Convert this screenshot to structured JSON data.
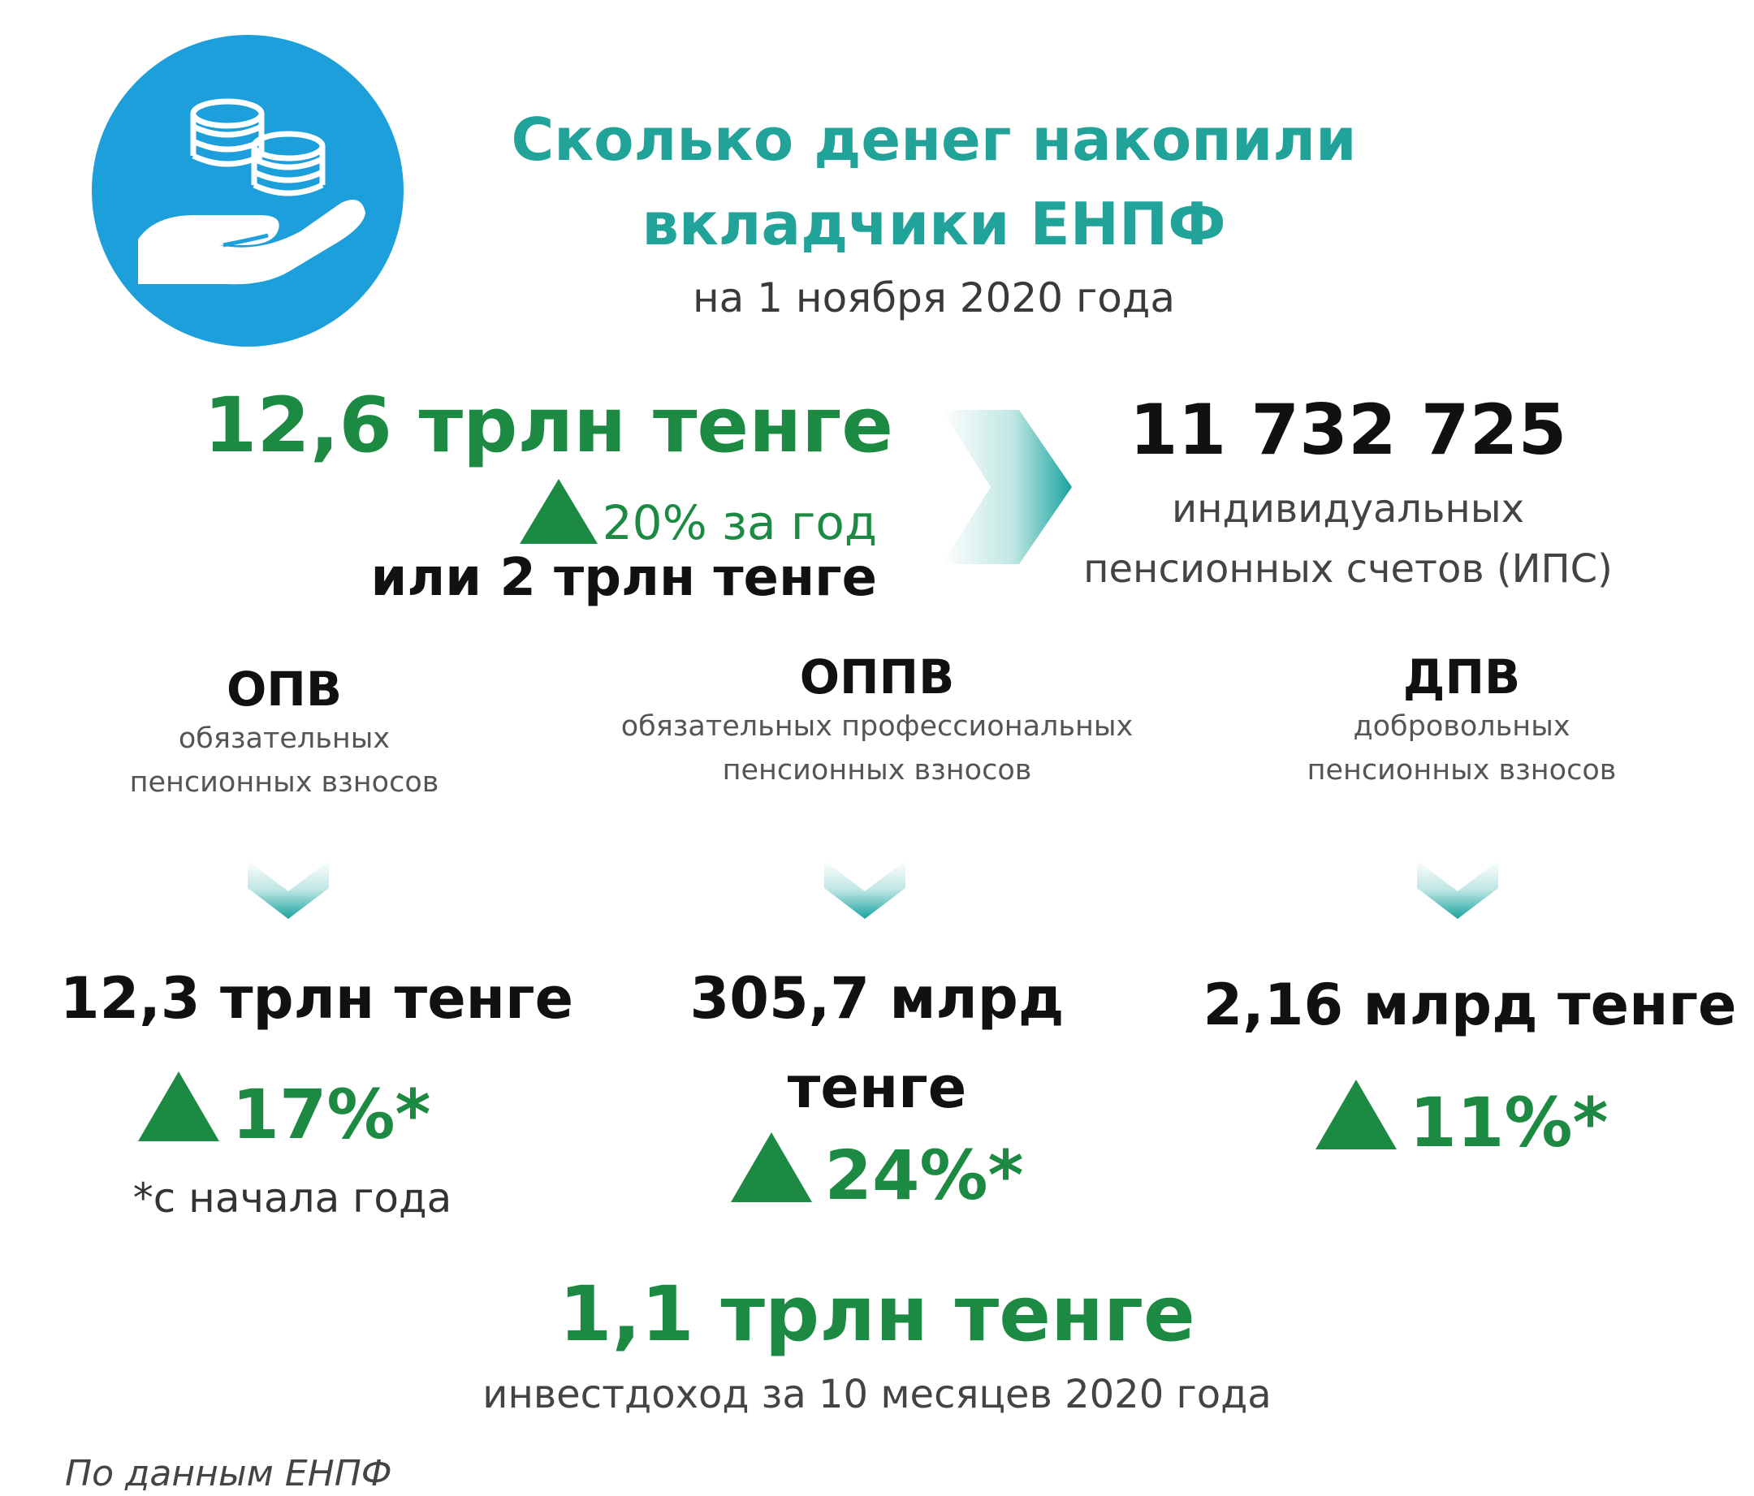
{
  "header": {
    "title_line1": "Сколько денег накопили",
    "title_line2": "вкладчики ЕНПФ",
    "subtitle": "на 1 ноября 2020 года",
    "icon": "hand-coins-icon"
  },
  "summary": {
    "total": "12,6 трлн тенге",
    "growth": "20% за год",
    "growth_amount": "или 2 трлн тенге",
    "accounts_count": "11 732 725",
    "accounts_label_line1": "индивидуальных",
    "accounts_label_line2": "пенсионных счетов (ИПС)"
  },
  "categories": [
    {
      "title": "ОПВ",
      "desc_line1": "обязательных",
      "desc_line2": "пенсионных взносов",
      "amount_line1": "12,3 трлн тенге",
      "amount_line2": "",
      "growth": "17%*"
    },
    {
      "title": "ОППВ",
      "desc_line1": "обязательных профессиональных",
      "desc_line2": "пенсионных взносов",
      "amount_line1": "305,7 млрд",
      "amount_line2": "тенге",
      "growth": "24%*"
    },
    {
      "title": "ДПВ",
      "desc_line1": "добровольных",
      "desc_line2": "пенсионных взносов",
      "amount_line1": "2,16 млрд тенге",
      "amount_line2": "",
      "growth": "11%*"
    }
  ],
  "footnote": "*с начала года",
  "investment": {
    "amount": "1,1 трлн тенге",
    "label": "инвестдоход  за 10 месяцев 2020 года"
  },
  "source": "По данным ЕНПФ",
  "colors": {
    "title_teal": "#21a39a",
    "accent_green": "#1d8a43",
    "icon_blue": "#1c9fdb"
  }
}
